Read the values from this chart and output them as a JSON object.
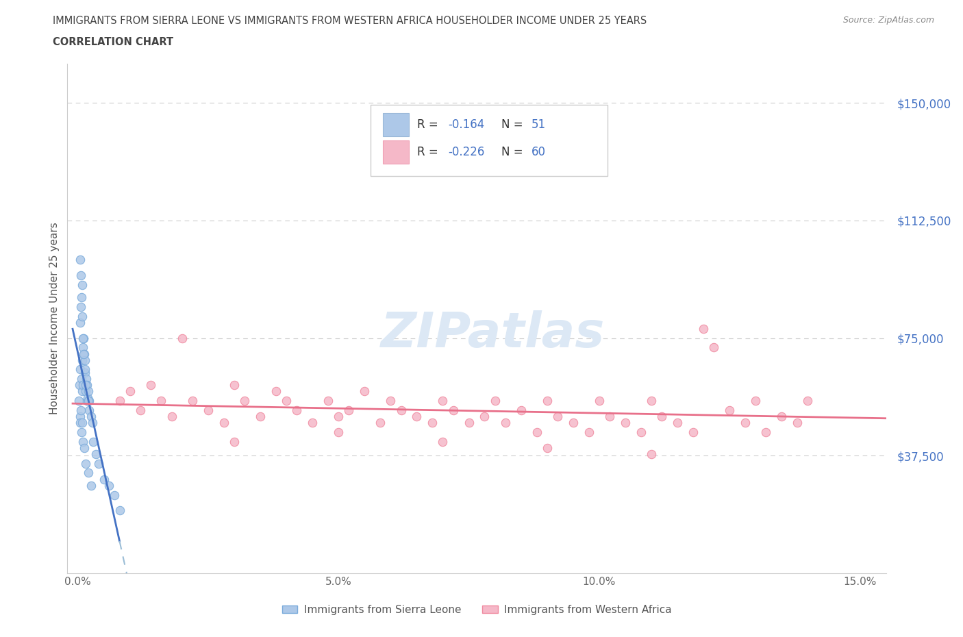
{
  "title_line1": "IMMIGRANTS FROM SIERRA LEONE VS IMMIGRANTS FROM WESTERN AFRICA HOUSEHOLDER INCOME UNDER 25 YEARS",
  "title_line2": "CORRELATION CHART",
  "source_text": "Source: ZipAtlas.com",
  "ylabel": "Householder Income Under 25 years",
  "xlim": [
    -0.002,
    0.155
  ],
  "ylim": [
    0,
    162500
  ],
  "yticks": [
    37500,
    75000,
    112500,
    150000
  ],
  "ytick_labels": [
    "$37,500",
    "$75,000",
    "$112,500",
    "$150,000"
  ],
  "xticks": [
    0.0,
    0.05,
    0.1,
    0.15
  ],
  "xtick_labels": [
    "0.0%",
    "5.0%",
    "10.0%",
    "15.0%"
  ],
  "grid_color": "#cccccc",
  "background_color": "#ffffff",
  "sl_color_fill": "#adc8e8",
  "sl_color_edge": "#7aabdb",
  "wa_color_fill": "#f5b8c8",
  "wa_color_edge": "#f08aa0",
  "sl_line_color": "#4472c4",
  "wa_line_color": "#e8708a",
  "dashed_line_color": "#9bbdd6",
  "legend_label1": "Immigrants from Sierra Leone",
  "legend_label2": "Immigrants from Western Africa",
  "title_color": "#444444",
  "ylabel_color": "#555555",
  "tick_color_y": "#4472c4",
  "tick_color_x": "#666666",
  "source_color": "#888888",
  "watermark": "ZIPatlas",
  "watermark_color": "#dce8f5"
}
